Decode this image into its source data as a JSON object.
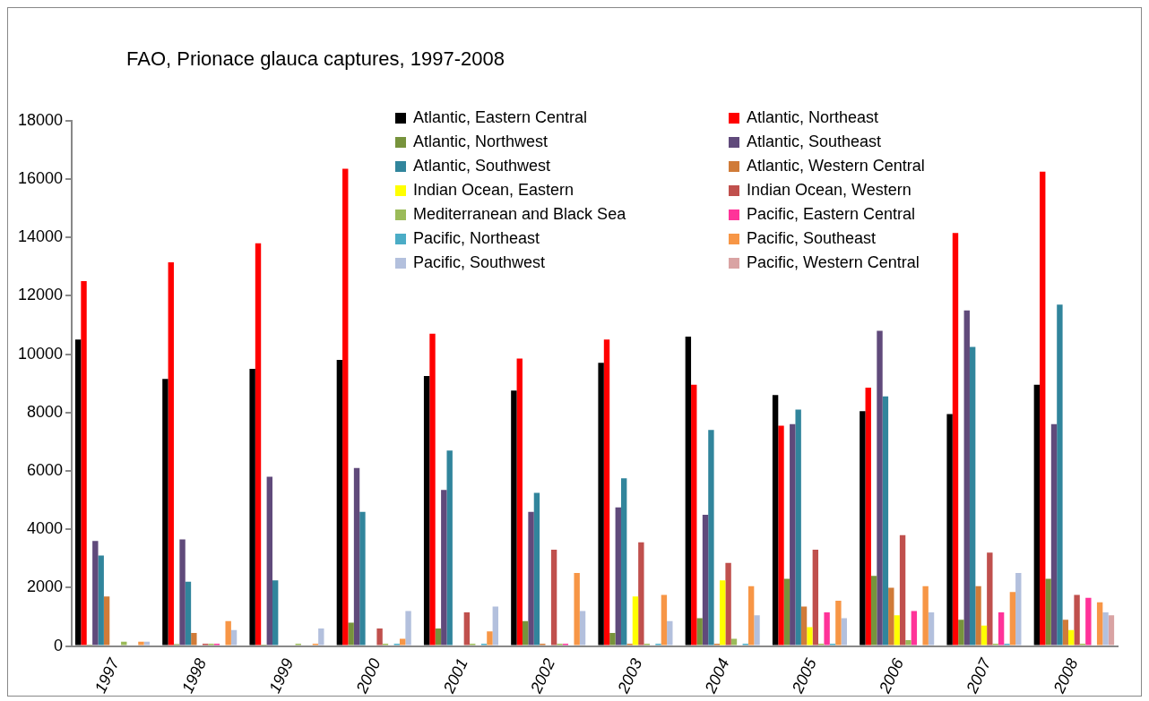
{
  "chart_data": {
    "type": "bar",
    "title": "FAO, Prionace glauca captures, 1997-2008",
    "categories": [
      "1997",
      "1998",
      "1999",
      "2000",
      "2001",
      "2002",
      "2003",
      "2004",
      "2005",
      "2006",
      "2007",
      "2008"
    ],
    "series": [
      {
        "name": "Atlantic, Eastern Central",
        "color": "#000000",
        "values": [
          10500,
          9150,
          9500,
          9800,
          9250,
          8750,
          9700,
          10600,
          8600,
          8050,
          7950,
          8950
        ]
      },
      {
        "name": "Atlantic, Northeast",
        "color": "#ff0000",
        "values": [
          12500,
          13150,
          13800,
          16350,
          10700,
          9850,
          10500,
          8950,
          7550,
          8850,
          14150,
          16250
        ]
      },
      {
        "name": "Atlantic, Northwest",
        "color": "#77933c",
        "values": [
          50,
          60,
          50,
          800,
          600,
          850,
          450,
          950,
          2300,
          2400,
          900,
          2300
        ]
      },
      {
        "name": "Atlantic, Southeast",
        "color": "#604a7b",
        "values": [
          3600,
          3650,
          5800,
          6100,
          5350,
          4600,
          4750,
          4500,
          7600,
          10800,
          11500,
          7600
        ]
      },
      {
        "name": "Atlantic, Southwest",
        "color": "#31859c",
        "values": [
          3100,
          2200,
          2250,
          4600,
          6700,
          5250,
          5750,
          7400,
          8100,
          8550,
          10250,
          11700
        ]
      },
      {
        "name": "Atlantic, Western Central",
        "color": "#d07b38",
        "values": [
          1700,
          450,
          0,
          0,
          0,
          80,
          80,
          80,
          1350,
          2000,
          2050,
          900
        ]
      },
      {
        "name": "Indian Ocean, Eastern",
        "color": "#ffff00",
        "values": [
          0,
          0,
          0,
          0,
          0,
          0,
          1700,
          2250,
          650,
          1050,
          700,
          550
        ]
      },
      {
        "name": "Indian Ocean, Western",
        "color": "#c0504d",
        "values": [
          0,
          80,
          0,
          600,
          1150,
          3300,
          3550,
          2850,
          3300,
          3800,
          3200,
          1750
        ]
      },
      {
        "name": "Mediterranean and Black Sea",
        "color": "#9bbb59",
        "values": [
          150,
          80,
          80,
          80,
          80,
          80,
          80,
          250,
          80,
          200,
          80,
          80
        ]
      },
      {
        "name": "Pacific, Eastern Central",
        "color": "#ff3399",
        "values": [
          0,
          80,
          0,
          0,
          0,
          80,
          0,
          0,
          1150,
          1200,
          1150,
          1650
        ]
      },
      {
        "name": "Pacific, Northeast",
        "color": "#4bacc6",
        "values": [
          0,
          0,
          0,
          80,
          80,
          0,
          80,
          80,
          80,
          0,
          80,
          0
        ]
      },
      {
        "name": "Pacific, Southeast",
        "color": "#f79646",
        "values": [
          150,
          850,
          80,
          250,
          500,
          2500,
          1750,
          2050,
          1550,
          2050,
          1850,
          1500
        ]
      },
      {
        "name": "Pacific, Southwest",
        "color": "#b3c0dd",
        "values": [
          150,
          550,
          600,
          1200,
          1350,
          1200,
          850,
          1050,
          950,
          1150,
          2500,
          1150
        ]
      },
      {
        "name": "Pacific, Western Central",
        "color": "#d9a3a3",
        "values": [
          0,
          0,
          0,
          0,
          0,
          0,
          0,
          0,
          0,
          0,
          0,
          1050
        ]
      }
    ],
    "ylim": [
      0,
      18000
    ],
    "yticks": [
      0,
      2000,
      4000,
      6000,
      8000,
      10000,
      12000,
      14000,
      16000,
      18000
    ],
    "grid": false,
    "legend": "top right"
  }
}
